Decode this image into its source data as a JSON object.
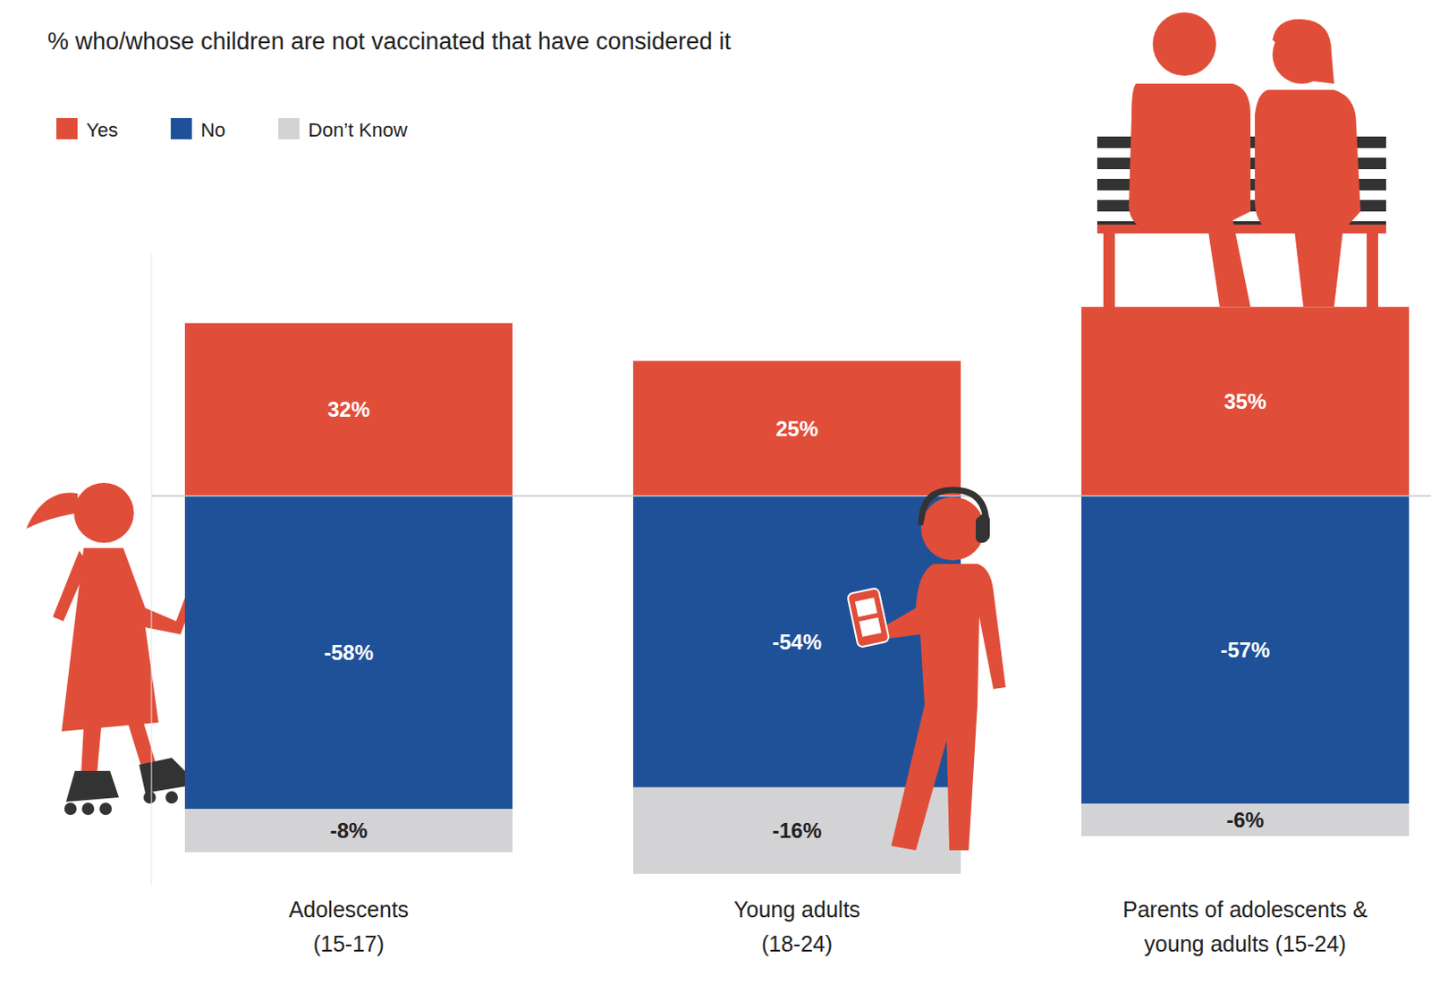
{
  "chart_data": {
    "type": "bar",
    "title": "% who/whose children are not vaccinated that have considered it",
    "categories": [
      "Adolescents (15-17)",
      "Young adults (18-24)",
      "Parents of adolescents & young adults (15-24)"
    ],
    "stacked": true,
    "data_labels": true,
    "tick_labels": false,
    "legend": "top-left",
    "ylim": [
      -72,
      45
    ],
    "series": [
      {
        "name": "Yes",
        "color": "#e04e39",
        "values": [
          32,
          25,
          35
        ],
        "value_labels": [
          "32%",
          "25%",
          "35%"
        ]
      },
      {
        "name": "No",
        "color": "#1f5199",
        "values": [
          -58,
          -54,
          -57
        ],
        "value_labels": [
          "-58%",
          "-54%",
          "-57%"
        ]
      },
      {
        "name": "Don’t Know",
        "color": "#d3d3d5",
        "values": [
          -8,
          -16,
          -6
        ],
        "value_labels": [
          "-8%",
          "-16%",
          "-6%"
        ]
      }
    ]
  }
}
